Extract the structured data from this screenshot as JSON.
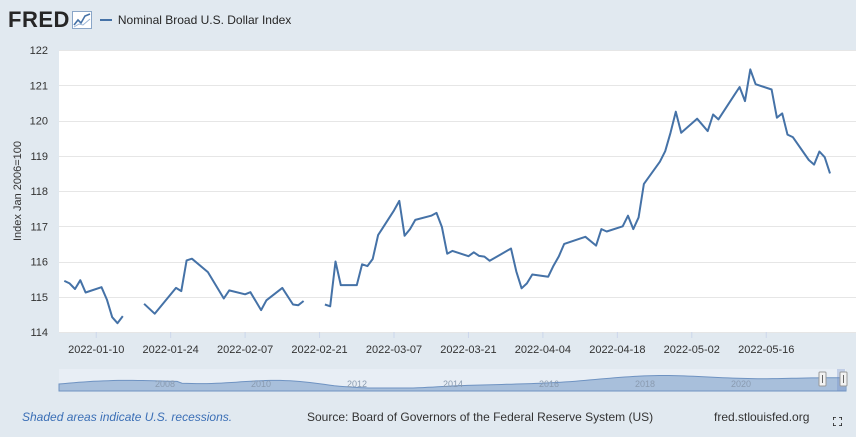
{
  "header": {
    "logo": "FRED",
    "legend_label": "Nominal Broad U.S. Dollar Index"
  },
  "colors": {
    "series": "#4572a7",
    "plot_bg": "#ffffff",
    "page_bg": "#e1e9f0",
    "navigator_fill": "#a8bfdb"
  },
  "chart_data": {
    "type": "line",
    "title": "",
    "xlabel": "",
    "ylabel": "Index Jan 2006=100",
    "ylim": [
      114,
      122
    ],
    "yticks": [
      114,
      115,
      116,
      117,
      118,
      119,
      120,
      121,
      122
    ],
    "xlim": [
      "2022-01-03",
      "2022-05-31"
    ],
    "xticks": [
      "2022-01-10",
      "2022-01-24",
      "2022-02-07",
      "2022-02-21",
      "2022-03-07",
      "2022-03-21",
      "2022-04-04",
      "2022-04-18",
      "2022-05-02",
      "2022-05-16"
    ],
    "grid": "horizontal",
    "legend_position": "top-left",
    "series": [
      {
        "name": "Nominal Broad U.S. Dollar Index",
        "segments": [
          [
            {
              "x": "2022-01-04",
              "y": 115.45
            },
            {
              "x": "2022-01-05",
              "y": 115.38
            },
            {
              "x": "2022-01-06",
              "y": 115.22
            },
            {
              "x": "2022-01-07",
              "y": 115.47
            },
            {
              "x": "2022-01-08",
              "y": 115.12
            },
            {
              "x": "2022-01-11",
              "y": 115.27
            },
            {
              "x": "2022-01-12",
              "y": 114.92
            },
            {
              "x": "2022-01-13",
              "y": 114.42
            },
            {
              "x": "2022-01-14",
              "y": 114.25
            },
            {
              "x": "2022-01-15",
              "y": 114.45
            }
          ],
          [
            {
              "x": "2022-01-19",
              "y": 114.8
            },
            {
              "x": "2022-01-21",
              "y": 114.52
            },
            {
              "x": "2022-01-25",
              "y": 115.25
            },
            {
              "x": "2022-01-26",
              "y": 115.16
            },
            {
              "x": "2022-01-27",
              "y": 116.03
            },
            {
              "x": "2022-01-28",
              "y": 116.08
            },
            {
              "x": "2022-01-31",
              "y": 115.7
            },
            {
              "x": "2022-02-03",
              "y": 114.95
            },
            {
              "x": "2022-02-04",
              "y": 115.18
            },
            {
              "x": "2022-02-07",
              "y": 115.07
            },
            {
              "x": "2022-02-08",
              "y": 115.13
            },
            {
              "x": "2022-02-10",
              "y": 114.62
            },
            {
              "x": "2022-02-11",
              "y": 114.9
            },
            {
              "x": "2022-02-14",
              "y": 115.25
            },
            {
              "x": "2022-02-16",
              "y": 114.78
            },
            {
              "x": "2022-02-17",
              "y": 114.76
            },
            {
              "x": "2022-02-18",
              "y": 114.88
            }
          ],
          [
            {
              "x": "2022-02-22",
              "y": 114.78
            },
            {
              "x": "2022-02-23",
              "y": 114.73
            },
            {
              "x": "2022-02-24",
              "y": 116.0
            },
            {
              "x": "2022-02-25",
              "y": 115.33
            },
            {
              "x": "2022-02-28",
              "y": 115.33
            },
            {
              "x": "2022-03-01",
              "y": 115.92
            },
            {
              "x": "2022-03-02",
              "y": 115.87
            },
            {
              "x": "2022-03-03",
              "y": 116.07
            },
            {
              "x": "2022-03-04",
              "y": 116.75
            },
            {
              "x": "2022-03-07",
              "y": 117.45
            },
            {
              "x": "2022-03-08",
              "y": 117.72
            },
            {
              "x": "2022-03-09",
              "y": 116.73
            },
            {
              "x": "2022-03-10",
              "y": 116.92
            },
            {
              "x": "2022-03-11",
              "y": 117.18
            },
            {
              "x": "2022-03-14",
              "y": 117.3
            },
            {
              "x": "2022-03-15",
              "y": 117.38
            },
            {
              "x": "2022-03-16",
              "y": 116.98
            },
            {
              "x": "2022-03-17",
              "y": 116.22
            },
            {
              "x": "2022-03-18",
              "y": 116.3
            },
            {
              "x": "2022-03-21",
              "y": 116.15
            },
            {
              "x": "2022-03-22",
              "y": 116.26
            },
            {
              "x": "2022-03-23",
              "y": 116.16
            },
            {
              "x": "2022-03-24",
              "y": 116.14
            },
            {
              "x": "2022-03-25",
              "y": 116.02
            },
            {
              "x": "2022-03-29",
              "y": 116.37
            },
            {
              "x": "2022-03-30",
              "y": 115.72
            },
            {
              "x": "2022-03-31",
              "y": 115.24
            },
            {
              "x": "2022-04-01",
              "y": 115.38
            },
            {
              "x": "2022-04-02",
              "y": 115.63
            },
            {
              "x": "2022-04-05",
              "y": 115.57
            },
            {
              "x": "2022-04-06",
              "y": 115.88
            },
            {
              "x": "2022-04-07",
              "y": 116.15
            },
            {
              "x": "2022-04-08",
              "y": 116.5
            },
            {
              "x": "2022-04-11",
              "y": 116.65
            },
            {
              "x": "2022-04-12",
              "y": 116.7
            },
            {
              "x": "2022-04-14",
              "y": 116.45
            },
            {
              "x": "2022-04-15",
              "y": 116.92
            },
            {
              "x": "2022-04-16",
              "y": 116.85
            },
            {
              "x": "2022-04-19",
              "y": 117.0
            },
            {
              "x": "2022-04-20",
              "y": 117.3
            },
            {
              "x": "2022-04-21",
              "y": 116.92
            },
            {
              "x": "2022-04-22",
              "y": 117.25
            },
            {
              "x": "2022-04-23",
              "y": 118.2
            },
            {
              "x": "2022-04-26",
              "y": 118.83
            },
            {
              "x": "2022-04-27",
              "y": 119.13
            },
            {
              "x": "2022-04-28",
              "y": 119.65
            },
            {
              "x": "2022-04-29",
              "y": 120.25
            },
            {
              "x": "2022-04-30",
              "y": 119.65
            },
            {
              "x": "2022-05-03",
              "y": 120.05
            },
            {
              "x": "2022-05-05",
              "y": 119.7
            },
            {
              "x": "2022-05-06",
              "y": 120.17
            },
            {
              "x": "2022-05-07",
              "y": 120.03
            },
            {
              "x": "2022-05-10",
              "y": 120.72
            },
            {
              "x": "2022-05-11",
              "y": 120.95
            },
            {
              "x": "2022-05-12",
              "y": 120.55
            },
            {
              "x": "2022-05-13",
              "y": 121.45
            },
            {
              "x": "2022-05-14",
              "y": 121.03
            },
            {
              "x": "2022-05-17",
              "y": 120.88
            },
            {
              "x": "2022-05-18",
              "y": 120.08
            },
            {
              "x": "2022-05-19",
              "y": 120.2
            },
            {
              "x": "2022-05-20",
              "y": 119.6
            },
            {
              "x": "2022-05-21",
              "y": 119.53
            },
            {
              "x": "2022-05-24",
              "y": 118.88
            },
            {
              "x": "2022-05-25",
              "y": 118.75
            },
            {
              "x": "2022-05-26",
              "y": 119.12
            },
            {
              "x": "2022-05-27",
              "y": 118.96
            },
            {
              "x": "2022-05-28",
              "y": 118.5
            }
          ]
        ]
      }
    ],
    "navigator": {
      "labels": [
        "2008",
        "2010",
        "2012",
        "2014",
        "2016",
        "2018",
        "2020"
      ]
    }
  },
  "footer": {
    "recession_note": "Shaded areas indicate U.S. recessions.",
    "source": "Source: Board of Governors of the Federal Reserve System (US)",
    "site": "fred.stlouisfed.org"
  },
  "icons": {
    "logo_graph": "chart-line-icon",
    "fullscreen": "fullscreen-icon"
  }
}
